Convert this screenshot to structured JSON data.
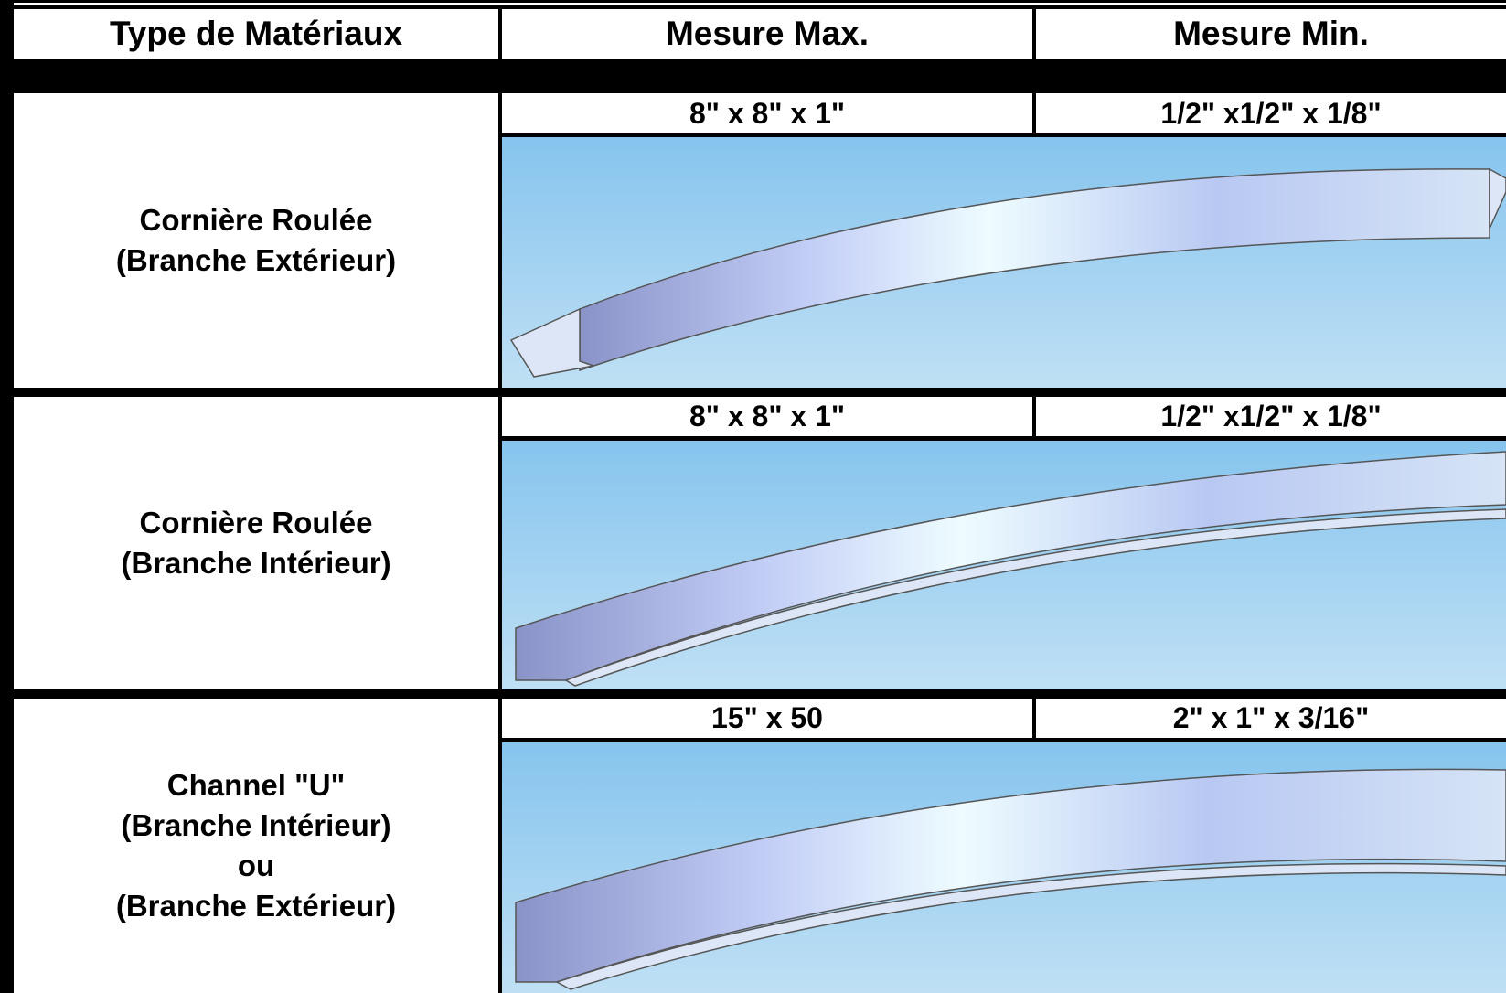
{
  "table": {
    "header": [
      "Type de Matériaux",
      "Mesure Max.",
      "Mesure Min."
    ],
    "rows": [
      {
        "label": [
          "Cornière Roulée",
          "(Branche Extérieur)"
        ],
        "max": "8\" x 8\" x 1\"",
        "min": "1/2\" x1/2\" x 1/8\""
      },
      {
        "label": [
          "Cornière Roulée",
          "(Branche Intérieur)"
        ],
        "max": "8\" x 8\" x 1\"",
        "min": "1/2\" x1/2\" x 1/8\""
      },
      {
        "label": [
          "Channel \"U\"",
          "(Branche Intérieur)",
          "ou",
          "(Branche Extérieur)"
        ],
        "max": "15\" x 50",
        "min": "2\" x 1\" x 3/16\""
      }
    ]
  }
}
